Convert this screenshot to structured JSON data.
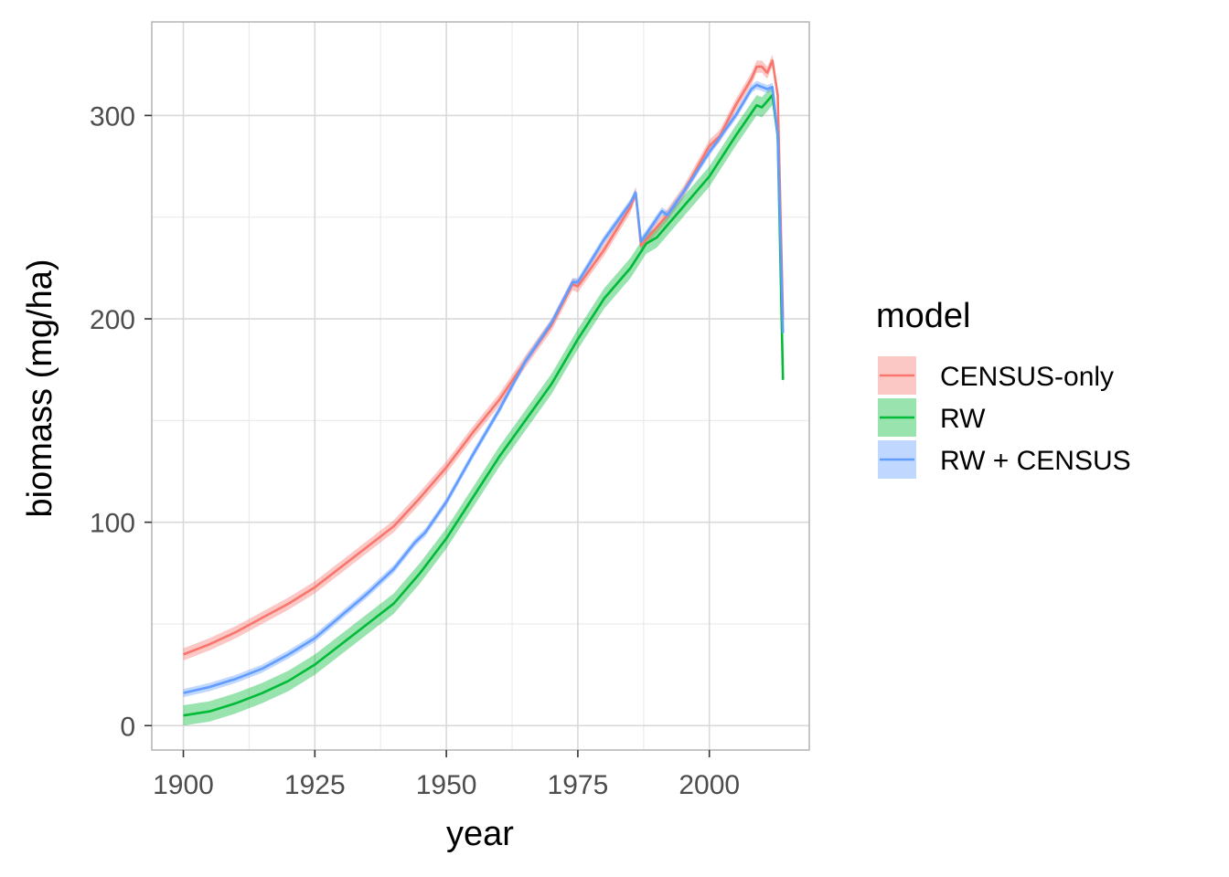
{
  "chart_data": {
    "type": "line",
    "xlabel": "year",
    "ylabel": "biomass (mg/ha)",
    "xlim": [
      1894,
      2019
    ],
    "ylim": [
      -12,
      346
    ],
    "x_ticks": [
      1900,
      1925,
      1950,
      1975,
      2000
    ],
    "y_ticks": [
      0,
      100,
      200,
      300
    ],
    "grid": true,
    "legend": {
      "title": "model",
      "position": "right"
    },
    "series": [
      {
        "name": "CENSUS-only",
        "color": "#F8766D",
        "ribbon_halfwidth": 3,
        "points": [
          [
            1900,
            35
          ],
          [
            1905,
            40
          ],
          [
            1910,
            46
          ],
          [
            1915,
            53
          ],
          [
            1920,
            60
          ],
          [
            1925,
            68
          ],
          [
            1930,
            78
          ],
          [
            1935,
            88
          ],
          [
            1940,
            98
          ],
          [
            1945,
            112
          ],
          [
            1950,
            127
          ],
          [
            1955,
            144
          ],
          [
            1960,
            160
          ],
          [
            1965,
            179
          ],
          [
            1970,
            197
          ],
          [
            1974,
            217
          ],
          [
            1975,
            216
          ],
          [
            1980,
            234
          ],
          [
            1985,
            255
          ],
          [
            1986,
            262
          ],
          [
            1987,
            236
          ],
          [
            1990,
            245
          ],
          [
            1992,
            251
          ],
          [
            1995,
            262
          ],
          [
            2000,
            285
          ],
          [
            2002,
            290
          ],
          [
            2005,
            305
          ],
          [
            2008,
            318
          ],
          [
            2009,
            324
          ],
          [
            2010,
            324
          ],
          [
            2011,
            321
          ],
          [
            2012,
            327
          ],
          [
            2013,
            310
          ],
          [
            2014,
            200
          ]
        ]
      },
      {
        "name": "RW",
        "color": "#00BA38",
        "ribbon_halfwidth": 5,
        "points": [
          [
            1900,
            5
          ],
          [
            1905,
            7
          ],
          [
            1910,
            11
          ],
          [
            1915,
            16
          ],
          [
            1920,
            22
          ],
          [
            1925,
            30
          ],
          [
            1930,
            40
          ],
          [
            1935,
            50
          ],
          [
            1940,
            60
          ],
          [
            1945,
            75
          ],
          [
            1950,
            92
          ],
          [
            1955,
            112
          ],
          [
            1960,
            132
          ],
          [
            1965,
            150
          ],
          [
            1970,
            168
          ],
          [
            1975,
            190
          ],
          [
            1980,
            210
          ],
          [
            1985,
            225
          ],
          [
            1988,
            237
          ],
          [
            1990,
            240
          ],
          [
            1995,
            255
          ],
          [
            2000,
            270
          ],
          [
            2005,
            290
          ],
          [
            2009,
            305
          ],
          [
            2010,
            304
          ],
          [
            2012,
            310
          ],
          [
            2013,
            290
          ],
          [
            2014,
            170
          ]
        ]
      },
      {
        "name": "RW + CENSUS",
        "color": "#619CFF",
        "ribbon_halfwidth": 2,
        "points": [
          [
            1900,
            16
          ],
          [
            1905,
            19
          ],
          [
            1910,
            23
          ],
          [
            1915,
            28
          ],
          [
            1920,
            35
          ],
          [
            1925,
            43
          ],
          [
            1930,
            54
          ],
          [
            1935,
            65
          ],
          [
            1940,
            77
          ],
          [
            1944,
            90
          ],
          [
            1946,
            95
          ],
          [
            1950,
            110
          ],
          [
            1955,
            133
          ],
          [
            1960,
            155
          ],
          [
            1965,
            179
          ],
          [
            1970,
            198
          ],
          [
            1974,
            218
          ],
          [
            1975,
            218
          ],
          [
            1980,
            239
          ],
          [
            1985,
            257
          ],
          [
            1986,
            262
          ],
          [
            1987,
            238
          ],
          [
            1991,
            253
          ],
          [
            1992,
            251
          ],
          [
            1995,
            262
          ],
          [
            2000,
            282
          ],
          [
            2005,
            300
          ],
          [
            2008,
            313
          ],
          [
            2009,
            315
          ],
          [
            2011,
            313
          ],
          [
            2012,
            314
          ],
          [
            2013,
            290
          ],
          [
            2014,
            193
          ]
        ]
      }
    ]
  }
}
